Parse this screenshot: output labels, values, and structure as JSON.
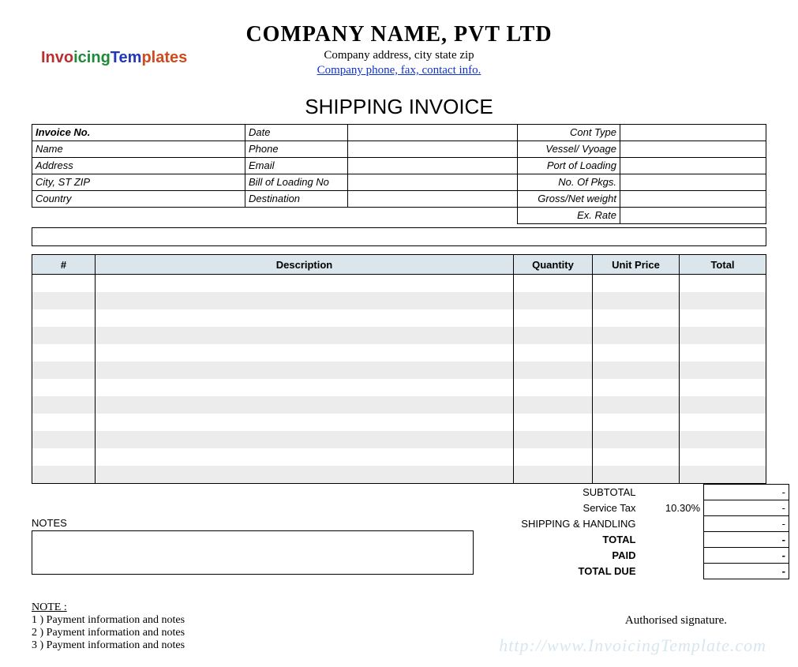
{
  "logo_segments": [
    "Invo",
    "icing",
    "Tem",
    "plates"
  ],
  "header": {
    "company_name": "COMPANY NAME,  PVT LTD",
    "company_address": "Company address, city state zip",
    "company_contact": "Company phone, fax, contact info."
  },
  "doc_title": "SHIPPING INVOICE",
  "meta": {
    "labels": {
      "invoice_no": "Invoice No.",
      "date": "Date",
      "cont_type": "Cont Type",
      "name": "Name",
      "phone": "Phone",
      "vessel_voyage": "Vessel/ Vyoage",
      "address": "Address",
      "email": "Email",
      "port_of_loading": "Port of Loading",
      "city_st_zip": "City, ST ZIP",
      "bill_of_loading_no": "Bill of Loading No",
      "no_of_pkgs": "No. Of Pkgs.",
      "country": "Country",
      "destination": "Destination",
      "gross_net_weight": "Gross/Net weight",
      "ex_rate": "Ex. Rate"
    }
  },
  "items": {
    "headers": {
      "num": "#",
      "description": "Description",
      "quantity": "Quantity",
      "unit_price": "Unit Price",
      "total": "Total"
    },
    "row_count": 12,
    "alt_row_color": "#ececec",
    "header_bg": "#dbe5ec"
  },
  "notes": {
    "label": "NOTES"
  },
  "totals": {
    "rows": [
      {
        "label": "SUBTOTAL",
        "extra": "",
        "value": "-",
        "bold": false
      },
      {
        "label": "Service Tax",
        "extra": "10.30%",
        "value": "-",
        "bold": false
      },
      {
        "label": "SHIPPING & HANDLING",
        "extra": "",
        "value": "-",
        "bold": false
      },
      {
        "label": "TOTAL",
        "extra": "",
        "value": "-",
        "bold": true
      },
      {
        "label": "PAID",
        "extra": "",
        "value": "-",
        "bold": true
      },
      {
        "label": "TOTAL DUE",
        "extra": "",
        "value": "-",
        "bold": true
      }
    ]
  },
  "foot_notes": {
    "heading": "NOTE :",
    "lines": [
      "1 )  Payment information and notes",
      "2 )  Payment information and notes",
      "3 )  Payment information and notes"
    ]
  },
  "signature": "Authorised signature.",
  "watermark": "http://www.InvoicingTemplate.com"
}
